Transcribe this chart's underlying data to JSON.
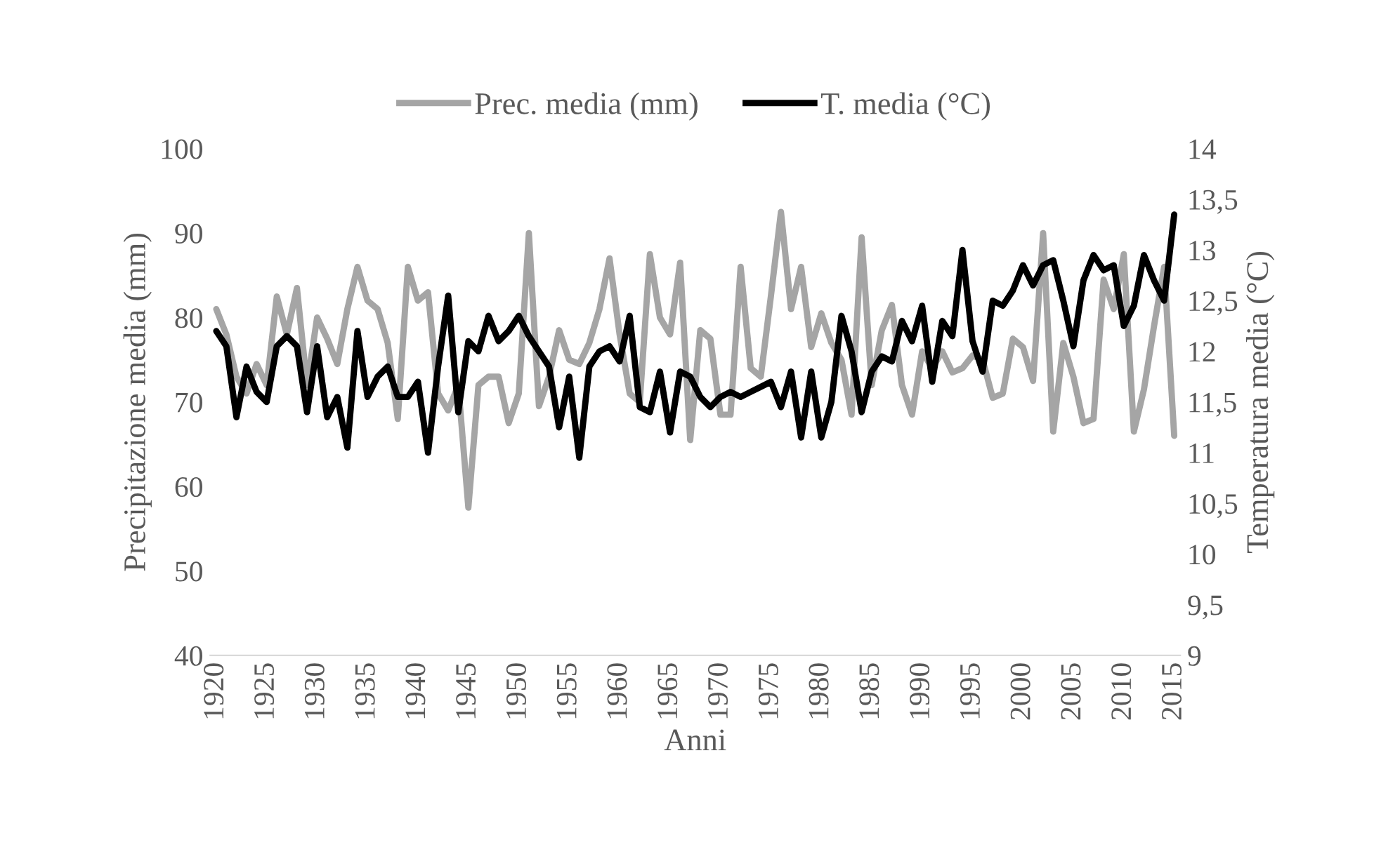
{
  "chart_data": {
    "type": "line",
    "xlabel": "Anni",
    "ylabel": "Precipitazione media (mm)",
    "y2label": "Temperatura media (°C)",
    "x": [
      1920,
      1921,
      1922,
      1923,
      1924,
      1925,
      1926,
      1927,
      1928,
      1929,
      1930,
      1931,
      1932,
      1933,
      1934,
      1935,
      1936,
      1937,
      1938,
      1939,
      1940,
      1941,
      1942,
      1943,
      1944,
      1945,
      1946,
      1947,
      1948,
      1949,
      1950,
      1951,
      1952,
      1953,
      1954,
      1955,
      1956,
      1957,
      1958,
      1959,
      1960,
      1961,
      1962,
      1963,
      1964,
      1965,
      1966,
      1967,
      1968,
      1969,
      1970,
      1971,
      1972,
      1973,
      1974,
      1975,
      1976,
      1977,
      1978,
      1979,
      1980,
      1981,
      1982,
      1983,
      1984,
      1985,
      1986,
      1987,
      1988,
      1989,
      1990,
      1991,
      1992,
      1993,
      1994,
      1995,
      1996,
      1997,
      1998,
      1999,
      2000,
      2001,
      2002,
      2003,
      2004,
      2005,
      2006,
      2007,
      2008,
      2009,
      2010,
      2011,
      2012,
      2013,
      2014,
      2015
    ],
    "series": [
      {
        "name": "Prec. media (mm)",
        "color": "#a5a5a5",
        "values": [
          81,
          78,
          73,
          71,
          74.5,
          72,
          82.5,
          78,
          83.5,
          72,
          80,
          77.5,
          74.5,
          81,
          86,
          82,
          81,
          77,
          68,
          86,
          82,
          83,
          71,
          69,
          72,
          57.5,
          72,
          73,
          73,
          67.5,
          71,
          90,
          69.5,
          73,
          78.5,
          75,
          74.5,
          77,
          81,
          87,
          78,
          71,
          70,
          87.5,
          80,
          78,
          86.5,
          65.5,
          78.5,
          77.5,
          68.5,
          68.5,
          86,
          74,
          73,
          82.5,
          92.5,
          81,
          86,
          76.5,
          80.5,
          77,
          75,
          68.5,
          89.5,
          72,
          78.5,
          81.5,
          72,
          68.5,
          76,
          74,
          76,
          73.5,
          74,
          75.5,
          75,
          70.5,
          71,
          77.5,
          76.5,
          72.5,
          90,
          66.5,
          77,
          73,
          67.5,
          68,
          84.5,
          81,
          87.5,
          66.5,
          71.5,
          79,
          86,
          66
        ]
      },
      {
        "name": "T. media (°C)",
        "color": "#000000",
        "axis": "y2",
        "values": [
          12.2,
          12.05,
          11.35,
          11.85,
          11.6,
          11.5,
          12.05,
          12.15,
          12.05,
          11.4,
          12.05,
          11.35,
          11.55,
          11.05,
          12.2,
          11.55,
          11.75,
          11.85,
          11.55,
          11.55,
          11.7,
          11.0,
          11.85,
          12.55,
          11.4,
          12.1,
          12.0,
          12.35,
          12.1,
          12.2,
          12.35,
          12.15,
          12.0,
          11.85,
          11.25,
          11.75,
          10.95,
          11.85,
          12.0,
          12.05,
          11.9,
          12.35,
          11.45,
          11.4,
          11.8,
          11.2,
          11.8,
          11.75,
          11.55,
          11.45,
          11.55,
          11.6,
          11.55,
          11.6,
          11.65,
          11.7,
          11.45,
          11.8,
          11.15,
          11.8,
          11.15,
          11.5,
          12.35,
          12.0,
          11.4,
          11.8,
          11.95,
          11.9,
          12.3,
          12.1,
          12.45,
          11.7,
          12.3,
          12.15,
          13.0,
          12.1,
          11.8,
          12.5,
          12.45,
          12.6,
          12.85,
          12.65,
          12.85,
          12.9,
          12.5,
          12.05,
          12.7,
          12.95,
          12.8,
          12.85,
          12.25,
          12.45,
          12.95,
          12.7,
          12.5,
          13.35
        ]
      }
    ],
    "xlim": [
      1919.4,
      2015.6
    ],
    "xticks": [
      1920,
      1925,
      1930,
      1935,
      1940,
      1945,
      1950,
      1955,
      1960,
      1965,
      1970,
      1975,
      1980,
      1985,
      1990,
      1995,
      2000,
      2005,
      2010,
      2015
    ],
    "ylim": [
      40,
      100
    ],
    "yticks": [
      40,
      50,
      60,
      70,
      80,
      90,
      100
    ],
    "y2lim": [
      9,
      14
    ],
    "y2ticks": [
      9,
      {
        "value": 9.5,
        "label": "9,5"
      },
      10,
      {
        "value": 10.5,
        "label": "10,5"
      },
      11,
      {
        "value": 11.5,
        "label": "11,5"
      },
      12,
      {
        "value": 12.5,
        "label": "12,5"
      },
      13,
      {
        "value": 13.5,
        "label": "13,5"
      },
      14
    ],
    "legend": "top",
    "grid": false,
    "line_style": "solid",
    "marker": "none"
  }
}
